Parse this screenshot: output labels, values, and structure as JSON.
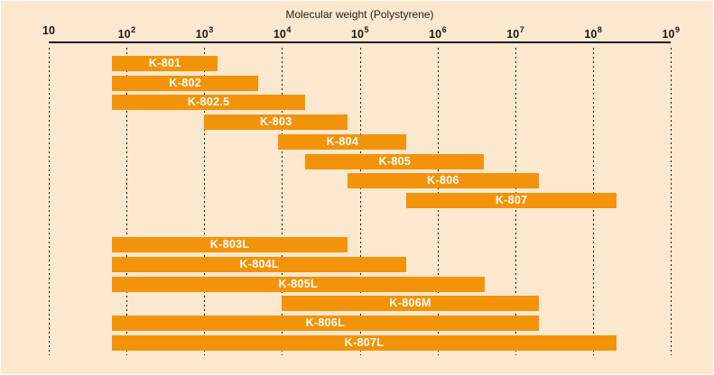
{
  "colors": {
    "background": "#FBE8CE",
    "bar": "#F3930A",
    "bar_label": "#FFFFFF",
    "axis": "#1A1A1A",
    "text": "#222222",
    "gridline": "#1A1A1A"
  },
  "chart_data": {
    "type": "bar",
    "orientation": "horizontal-range",
    "title": "Molecular weight (Polystyrene)",
    "x_axis": {
      "scale": "log10",
      "min": 10,
      "max": 1000000000,
      "grid": "dashed-vertical",
      "ticks": [
        {
          "display": "10",
          "exponent": null,
          "value": 10
        },
        {
          "display": "10",
          "exponent": 2,
          "value": 100
        },
        {
          "display": "10",
          "exponent": 3,
          "value": 1000
        },
        {
          "display": "10",
          "exponent": 4,
          "value": 10000
        },
        {
          "display": "10",
          "exponent": 5,
          "value": 100000
        },
        {
          "display": "10",
          "exponent": 6,
          "value": 1000000
        },
        {
          "display": "10",
          "exponent": 7,
          "value": 10000000
        },
        {
          "display": "10",
          "exponent": 8,
          "value": 100000000
        },
        {
          "display": "10",
          "exponent": 9,
          "value": 1000000000
        }
      ]
    },
    "legend": null,
    "groups": [
      {
        "bars": [
          {
            "label": "K-801",
            "min": 65,
            "max": 1500
          },
          {
            "label": "K-802",
            "min": 65,
            "max": 5000
          },
          {
            "label": "K-802.5",
            "min": 65,
            "max": 20000
          },
          {
            "label": "K-803",
            "min": 1000,
            "max": 70000
          },
          {
            "label": "K-804",
            "min": 9000,
            "max": 400000
          },
          {
            "label": "K-805",
            "min": 20000,
            "max": 4000000
          },
          {
            "label": "K-806",
            "min": 70000,
            "max": 20000000
          },
          {
            "label": "K-807",
            "min": 400000,
            "max": 200000000
          }
        ]
      },
      {
        "bars": [
          {
            "label": "K-803L",
            "min": 65,
            "max": 70000
          },
          {
            "label": "K-804L",
            "min": 65,
            "max": 400000
          },
          {
            "label": "K-805L",
            "min": 65,
            "max": 4000000
          },
          {
            "label": "K-806M",
            "min": 10000,
            "max": 20000000
          },
          {
            "label": "K-806L",
            "min": 65,
            "max": 20000000
          },
          {
            "label": "K-807L",
            "min": 65,
            "max": 200000000
          }
        ]
      }
    ]
  }
}
